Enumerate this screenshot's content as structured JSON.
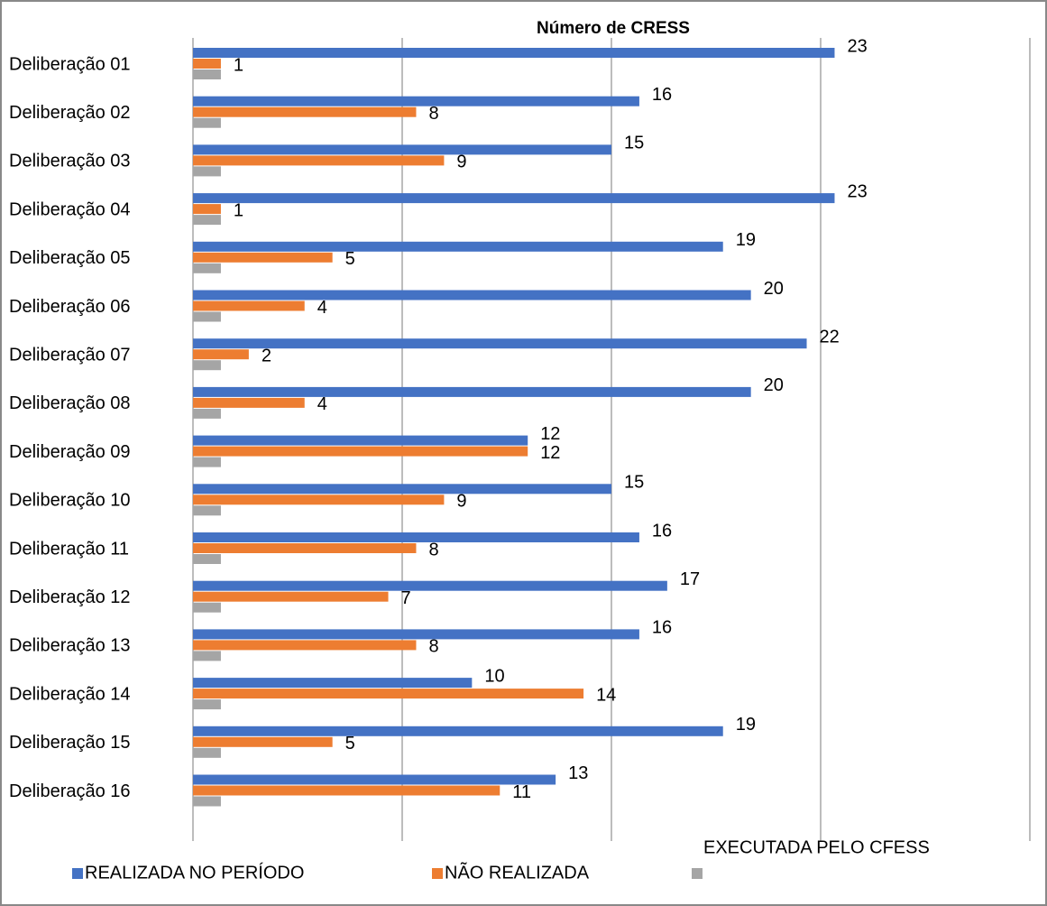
{
  "chart_data": {
    "type": "hbar",
    "title": "Número de CRESS",
    "categories": [
      "Deliberação 01",
      "Deliberação 02",
      "Deliberação 03",
      "Deliberação 04",
      "Deliberação 05",
      "Deliberação 06",
      "Deliberação 07",
      "Deliberação 08",
      "Deliberação 09",
      "Deliberação 10",
      "Deliberação 11",
      "Deliberação 12",
      "Deliberação 13",
      "Deliberação 14",
      "Deliberação 15",
      "Deliberação 16"
    ],
    "series": [
      {
        "name": "REALIZADA NO PERÍODO",
        "color": "#4472c4",
        "values": [
          23,
          16,
          15,
          23,
          19,
          20,
          22,
          20,
          12,
          15,
          16,
          17,
          16,
          10,
          19,
          13
        ],
        "data_labels": true
      },
      {
        "name": "NÃO REALIZADA",
        "color": "#ed7d31",
        "values": [
          1,
          8,
          9,
          1,
          5,
          4,
          2,
          4,
          12,
          9,
          8,
          7,
          8,
          14,
          5,
          11
        ],
        "data_labels": true
      },
      {
        "name": "EXECUTADA PELO CFESS",
        "color": "#a5a5a5",
        "values": [
          1,
          1,
          1,
          1,
          1,
          1,
          1,
          1,
          1,
          1,
          1,
          1,
          1,
          1,
          1,
          1
        ],
        "data_labels": false
      }
    ],
    "xlim": [
      0,
      30
    ],
    "xticks": [
      0,
      7.5,
      15,
      22.5,
      30
    ],
    "grid": true,
    "legend": "bottom"
  }
}
